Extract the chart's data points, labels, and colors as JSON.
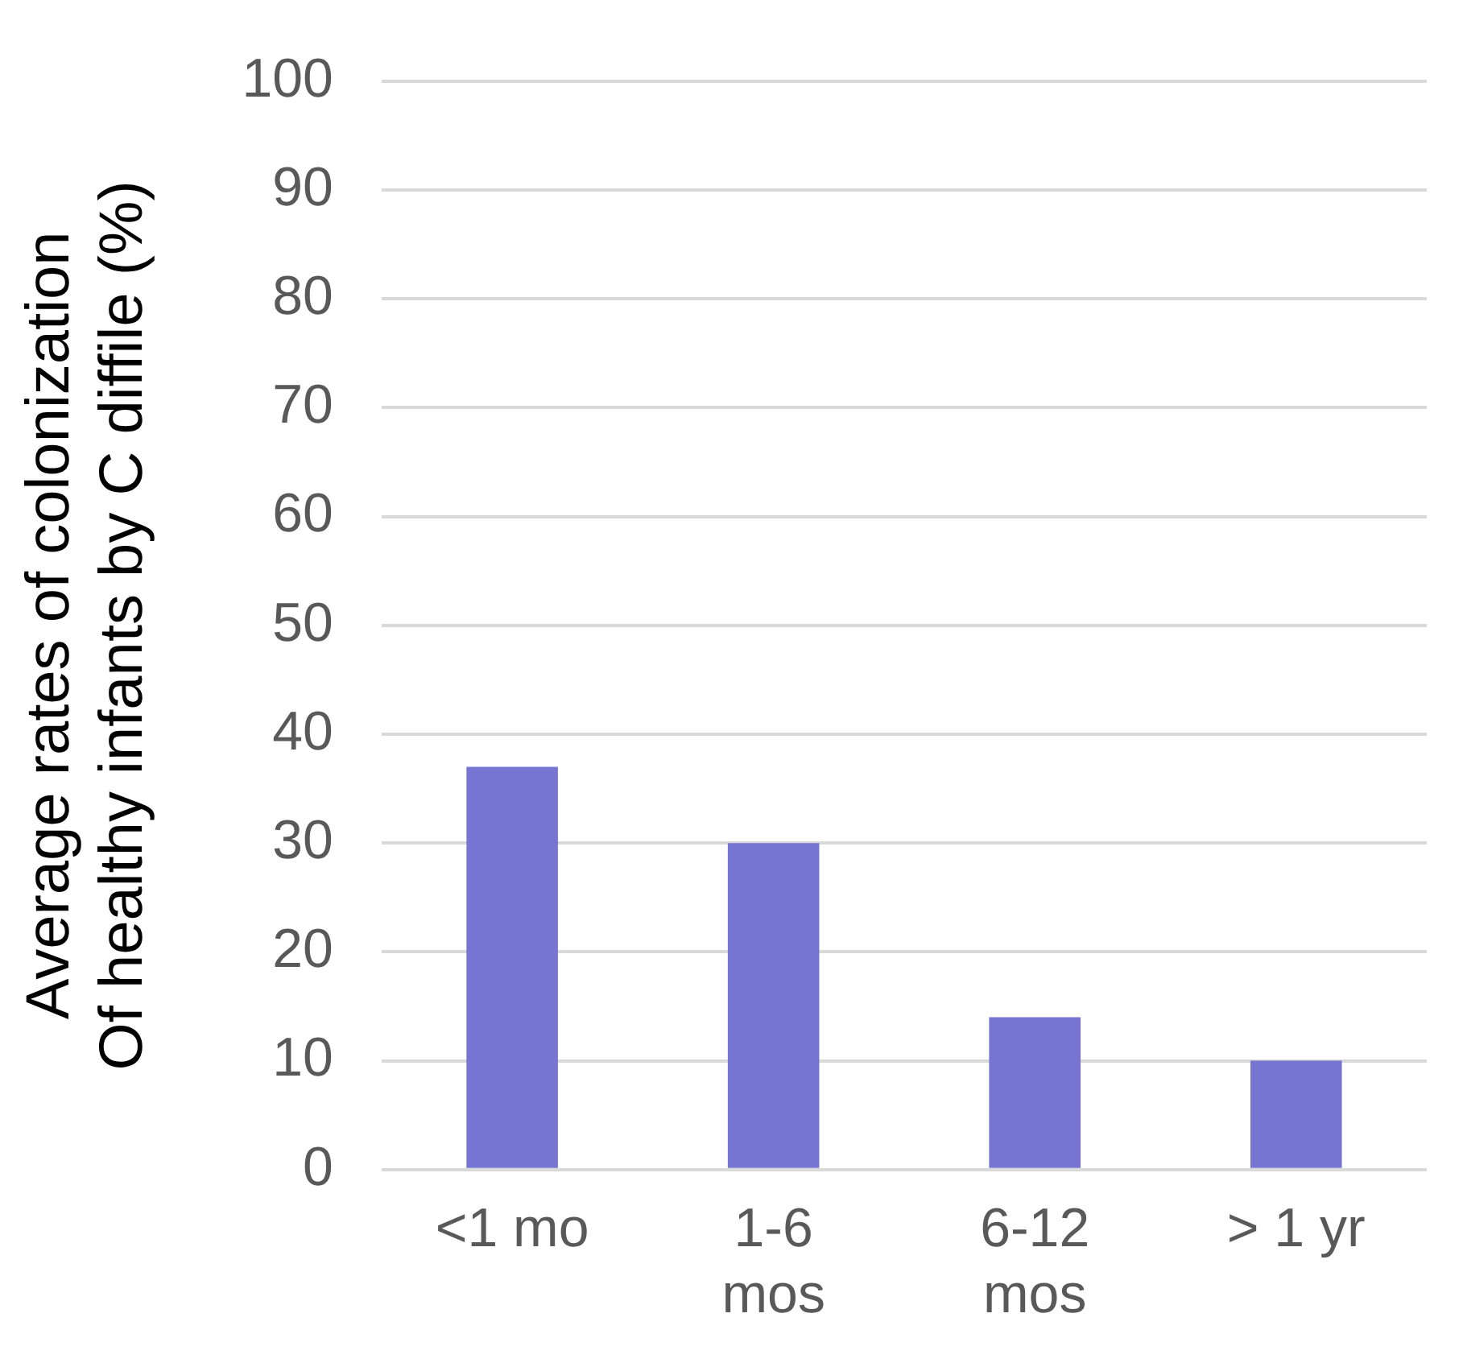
{
  "chart_data": {
    "type": "bar",
    "ylabel": "Average rates of colonization Of healthy infants by C diffile (%)",
    "categories": [
      "<1 mo",
      "1-6 mos",
      "6-12 mos",
      "> 1 yr"
    ],
    "series": [
      {
        "color": "#7676d2",
        "values": [
          37,
          30,
          14,
          10
        ]
      }
    ],
    "ylim": [
      0,
      100
    ],
    "yticks": [
      0,
      10,
      20,
      30,
      40,
      50,
      60,
      70,
      80,
      90,
      100
    ],
    "grid": "y",
    "legend": false
  }
}
